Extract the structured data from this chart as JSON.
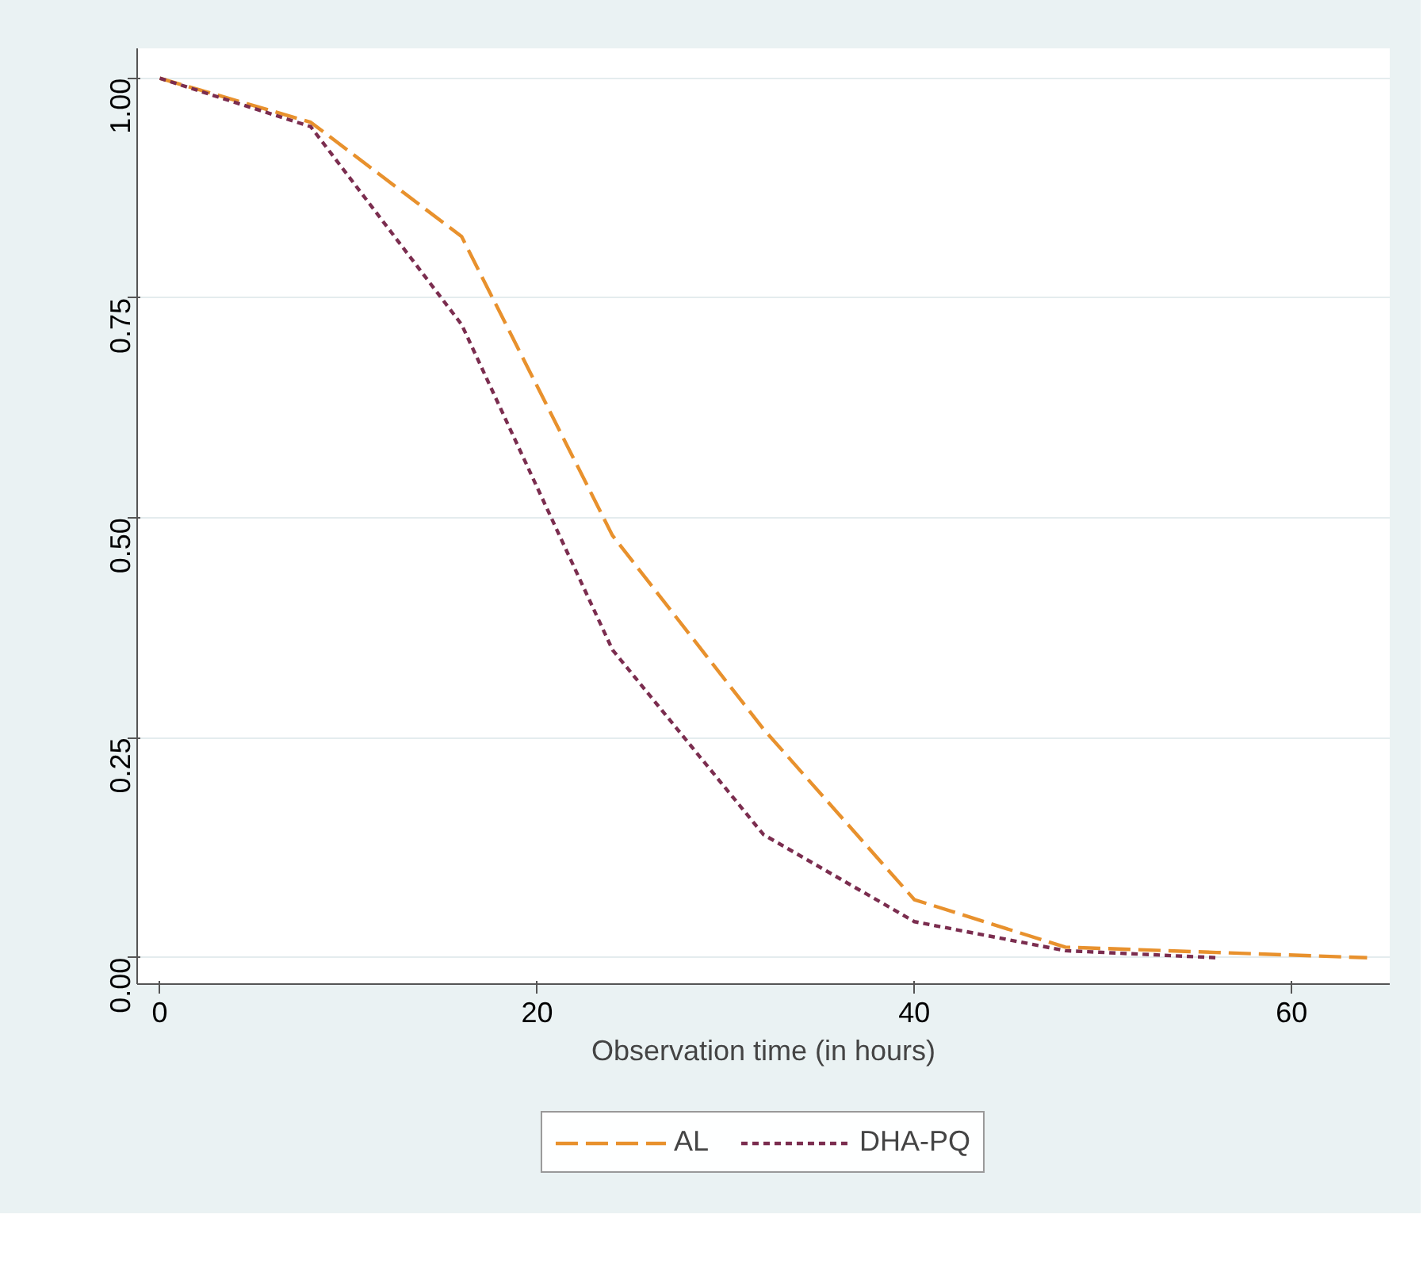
{
  "chart_data": {
    "type": "line",
    "xlabel": "Observation time (in hours)",
    "x": [
      0,
      8,
      16,
      24,
      32,
      40,
      48,
      56,
      64
    ],
    "series": [
      {
        "name": "AL",
        "color": "#e8912d",
        "line_style": "dashed",
        "values": [
          1.0,
          0.95,
          0.82,
          0.48,
          0.26,
          0.066,
          0.012,
          0.006,
          0.0
        ]
      },
      {
        "name": "DHA-PQ",
        "color": "#7b2d4f",
        "line_style": "dotted",
        "values": [
          1.0,
          0.945,
          0.72,
          0.35,
          0.14,
          0.041,
          0.008,
          0.0,
          null
        ]
      }
    ],
    "xlim": [
      -1.2,
      65.2
    ],
    "ylim": [
      -0.03,
      1.034
    ],
    "xticks": [
      0,
      20,
      40,
      60
    ],
    "yticks": [
      {
        "value": 0,
        "label": "0.00"
      },
      {
        "value": 0.25,
        "label": "0.25"
      },
      {
        "value": 0.5,
        "label": "0.50"
      },
      {
        "value": 0.75,
        "label": "0.75"
      },
      {
        "value": 1,
        "label": "1.00"
      }
    ],
    "grid": "y",
    "legend": "bottom",
    "marker": "none"
  }
}
